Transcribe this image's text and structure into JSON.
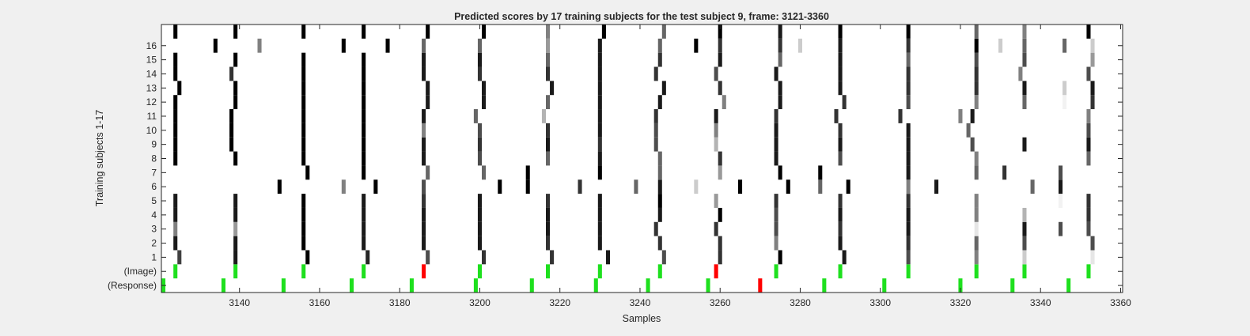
{
  "chart_data": {
    "type": "heatmap",
    "title": "Predicted scores by 17 training subjects for the test subject 9, frame: 3121-3360",
    "xlabel": "Samples",
    "ylabel": "Training subjects 1-17",
    "xlim": [
      3121,
      3360
    ],
    "xticks": [
      3140,
      3160,
      3180,
      3200,
      3220,
      3240,
      3260,
      3280,
      3300,
      3320,
      3340,
      3360
    ],
    "yticks": [
      {
        "row": 1,
        "label": "(Response)"
      },
      {
        "row": 2,
        "label": "(Image)"
      },
      {
        "row": 3,
        "label": "1"
      },
      {
        "row": 4,
        "label": "2"
      },
      {
        "row": 5,
        "label": "3"
      },
      {
        "row": 6,
        "label": "4"
      },
      {
        "row": 7,
        "label": "5"
      },
      {
        "row": 8,
        "label": "6"
      },
      {
        "row": 9,
        "label": "7"
      },
      {
        "row": 10,
        "label": "8"
      },
      {
        "row": 11,
        "label": "9"
      },
      {
        "row": 12,
        "label": "10"
      },
      {
        "row": 13,
        "label": "11"
      },
      {
        "row": 14,
        "label": "12"
      },
      {
        "row": 15,
        "label": "13"
      },
      {
        "row": 16,
        "label": "14"
      },
      {
        "row": 17,
        "label": "15"
      },
      {
        "row": 18,
        "label": "16"
      }
    ],
    "grid": false,
    "colors": {
      "marker_ok": "#1ee01e",
      "marker_error": "#ff0000",
      "background": "#ffffff"
    },
    "response_events": [
      {
        "x": 3121,
        "color": "green"
      },
      {
        "x": 3136,
        "color": "green"
      },
      {
        "x": 3151,
        "color": "green"
      },
      {
        "x": 3168,
        "color": "green"
      },
      {
        "x": 3183,
        "color": "green"
      },
      {
        "x": 3199,
        "color": "green"
      },
      {
        "x": 3213,
        "color": "green"
      },
      {
        "x": 3229,
        "color": "green"
      },
      {
        "x": 3242,
        "color": "green"
      },
      {
        "x": 3257,
        "color": "green"
      },
      {
        "x": 3270,
        "color": "red"
      },
      {
        "x": 3286,
        "color": "green"
      },
      {
        "x": 3301,
        "color": "green"
      },
      {
        "x": 3320,
        "color": "green"
      },
      {
        "x": 3333,
        "color": "green"
      },
      {
        "x": 3347,
        "color": "green"
      }
    ],
    "image_events": [
      {
        "x": 3124,
        "color": "green"
      },
      {
        "x": 3139,
        "color": "green"
      },
      {
        "x": 3156,
        "color": "green"
      },
      {
        "x": 3171,
        "color": "green"
      },
      {
        "x": 3186,
        "color": "red"
      },
      {
        "x": 3200,
        "color": "green"
      },
      {
        "x": 3217,
        "color": "green"
      },
      {
        "x": 3230,
        "color": "green"
      },
      {
        "x": 3245,
        "color": "green"
      },
      {
        "x": 3259,
        "color": "red"
      },
      {
        "x": 3274,
        "color": "green"
      },
      {
        "x": 3290,
        "color": "green"
      },
      {
        "x": 3307,
        "color": "green"
      },
      {
        "x": 3324,
        "color": "green"
      },
      {
        "x": 3336,
        "color": "green"
      },
      {
        "x": 3352,
        "color": "green"
      }
    ],
    "subjects_top_row_value": 17,
    "subjects": {
      "1": [
        [
          3125,
          0.25
        ],
        [
          3139,
          0.1
        ],
        [
          3157,
          0
        ],
        [
          3172,
          0.15
        ],
        [
          3187,
          0.3
        ],
        [
          3201,
          0.2
        ],
        [
          3218,
          0.2
        ],
        [
          3232,
          0.1
        ],
        [
          3246,
          0.3
        ],
        [
          3260,
          0.2
        ],
        [
          3275,
          0
        ],
        [
          3291,
          0.1
        ],
        [
          3307,
          0.3
        ],
        [
          3324,
          0.5
        ],
        [
          3336,
          0.8
        ],
        [
          3353,
          0.9
        ]
      ],
      "2": [
        [
          3124,
          0.1
        ],
        [
          3139,
          0.1
        ],
        [
          3156,
          0
        ],
        [
          3171,
          0.1
        ],
        [
          3186,
          0.1
        ],
        [
          3200,
          0.1
        ],
        [
          3217,
          0.2
        ],
        [
          3230,
          0.1
        ],
        [
          3245,
          0.2
        ],
        [
          3260,
          0.2
        ],
        [
          3274,
          0.5
        ],
        [
          3290,
          0.1
        ],
        [
          3307,
          0.2
        ],
        [
          3324,
          0.4
        ],
        [
          3336,
          0.3
        ],
        [
          3353,
          0.3
        ]
      ],
      "3": [
        [
          3124,
          0.5
        ],
        [
          3139,
          0.6
        ],
        [
          3156,
          0
        ],
        [
          3171,
          0.1
        ],
        [
          3186,
          0.1
        ],
        [
          3200,
          0.1
        ],
        [
          3217,
          0.1
        ],
        [
          3230,
          0.1
        ],
        [
          3244,
          0.2
        ],
        [
          3259,
          0.2
        ],
        [
          3274,
          0.3
        ],
        [
          3290,
          0.2
        ],
        [
          3307,
          0.1
        ],
        [
          3324,
          0.9
        ],
        [
          3336,
          0.1
        ],
        [
          3345,
          0.3
        ],
        [
          3352,
          0.3
        ]
      ],
      "4": [
        [
          3124,
          0.1
        ],
        [
          3139,
          0.1
        ],
        [
          3156,
          0
        ],
        [
          3171,
          0.1
        ],
        [
          3186,
          0.1
        ],
        [
          3200,
          0.1
        ],
        [
          3217,
          0.1
        ],
        [
          3230,
          0.1
        ],
        [
          3245,
          0.1
        ],
        [
          3260,
          0
        ],
        [
          3274,
          0.3
        ],
        [
          3290,
          0.1
        ],
        [
          3307,
          0.1
        ],
        [
          3324,
          0.5
        ],
        [
          3336,
          0.7
        ],
        [
          3352,
          0.2
        ]
      ],
      "5": [
        [
          3124,
          0.1
        ],
        [
          3139,
          0.1
        ],
        [
          3156,
          0
        ],
        [
          3171,
          0.1
        ],
        [
          3186,
          0.2
        ],
        [
          3200,
          0.1
        ],
        [
          3217,
          0.2
        ],
        [
          3230,
          0.1
        ],
        [
          3245,
          0
        ],
        [
          3259,
          0.6
        ],
        [
          3274,
          0.2
        ],
        [
          3290,
          0.2
        ],
        [
          3307,
          0.2
        ],
        [
          3324,
          0.5
        ],
        [
          3345,
          0.95
        ],
        [
          3352,
          0.2
        ]
      ],
      "6": [
        [
          3150,
          0
        ],
        [
          3166,
          0.5
        ],
        [
          3174,
          0
        ],
        [
          3186,
          0.3
        ],
        [
          3205,
          0
        ],
        [
          3212,
          0
        ],
        [
          3225,
          0.2
        ],
        [
          3239,
          0.4
        ],
        [
          3245,
          0.1
        ],
        [
          3254,
          0.8
        ],
        [
          3265,
          0
        ],
        [
          3277,
          0
        ],
        [
          3285,
          0.4
        ],
        [
          3292,
          0
        ],
        [
          3307,
          0.5
        ],
        [
          3314,
          0.1
        ],
        [
          3338,
          0.4
        ],
        [
          3345,
          0.1
        ]
      ],
      "7": [
        [
          3157,
          0
        ],
        [
          3171,
          0
        ],
        [
          3187,
          0.4
        ],
        [
          3201,
          0.4
        ],
        [
          3212,
          0
        ],
        [
          3230,
          0
        ],
        [
          3245,
          0.4
        ],
        [
          3260,
          0.6
        ],
        [
          3275,
          0
        ],
        [
          3285,
          0
        ],
        [
          3307,
          0.1
        ],
        [
          3324,
          0.4
        ],
        [
          3331,
          0.2
        ],
        [
          3345,
          0.3
        ]
      ],
      "8": [
        [
          3124,
          0
        ],
        [
          3139,
          0
        ],
        [
          3156,
          0
        ],
        [
          3171,
          0
        ],
        [
          3186,
          0.1
        ],
        [
          3200,
          0.3
        ],
        [
          3217,
          0.4
        ],
        [
          3230,
          0.1
        ],
        [
          3245,
          0.4
        ],
        [
          3260,
          0.2
        ],
        [
          3274,
          0.1
        ],
        [
          3290,
          0.3
        ],
        [
          3307,
          0.1
        ],
        [
          3324,
          0.5
        ],
        [
          3352,
          0.4
        ]
      ],
      "9": [
        [
          3124,
          0
        ],
        [
          3138,
          0
        ],
        [
          3156,
          0
        ],
        [
          3171,
          0
        ],
        [
          3186,
          0.1
        ],
        [
          3200,
          0.2
        ],
        [
          3217,
          0.1
        ],
        [
          3230,
          0.2
        ],
        [
          3244,
          0.3
        ],
        [
          3259,
          0.7
        ],
        [
          3274,
          0.1
        ],
        [
          3290,
          0.1
        ],
        [
          3307,
          0.1
        ],
        [
          3323,
          0.3
        ],
        [
          3336,
          0.1
        ],
        [
          3352,
          0.1
        ]
      ],
      "10": [
        [
          3124,
          0
        ],
        [
          3138,
          0
        ],
        [
          3156,
          0
        ],
        [
          3171,
          0
        ],
        [
          3186,
          0.5
        ],
        [
          3200,
          0.3
        ],
        [
          3217,
          0.2
        ],
        [
          3230,
          0.1
        ],
        [
          3244,
          0.3
        ],
        [
          3259,
          0.5
        ],
        [
          3274,
          0.1
        ],
        [
          3290,
          0.2
        ],
        [
          3307,
          0.1
        ],
        [
          3322,
          0.4
        ],
        [
          3352,
          0.3
        ]
      ],
      "11": [
        [
          3124,
          0
        ],
        [
          3138,
          0
        ],
        [
          3156,
          0
        ],
        [
          3171,
          0
        ],
        [
          3186,
          0.1
        ],
        [
          3199,
          0.4
        ],
        [
          3216,
          0.7
        ],
        [
          3230,
          0.1
        ],
        [
          3244,
          0.2
        ],
        [
          3259,
          0.1
        ],
        [
          3274,
          0.2
        ],
        [
          3289,
          0.2
        ],
        [
          3305,
          0.2
        ],
        [
          3320,
          0.5
        ],
        [
          3323,
          0.1
        ],
        [
          3352,
          0.5
        ]
      ],
      "12": [
        [
          3124,
          0
        ],
        [
          3139,
          0
        ],
        [
          3156,
          0
        ],
        [
          3171,
          0
        ],
        [
          3187,
          0.1
        ],
        [
          3201,
          0.1
        ],
        [
          3217,
          0.4
        ],
        [
          3230,
          0.1
        ],
        [
          3245,
          0.1
        ],
        [
          3261,
          0.5
        ],
        [
          3275,
          0.1
        ],
        [
          3291,
          0.2
        ],
        [
          3307,
          0.3
        ],
        [
          3324,
          0.5
        ],
        [
          3336,
          0.4
        ],
        [
          3346,
          0.95
        ],
        [
          3353,
          0.2
        ]
      ],
      "13": [
        [
          3125,
          0
        ],
        [
          3139,
          0
        ],
        [
          3156,
          0
        ],
        [
          3171,
          0
        ],
        [
          3187,
          0.1
        ],
        [
          3201,
          0.1
        ],
        [
          3218,
          0.1
        ],
        [
          3230,
          0.1
        ],
        [
          3246,
          0.1
        ],
        [
          3260,
          0.2
        ],
        [
          3275,
          0.1
        ],
        [
          3290,
          0.1
        ],
        [
          3307,
          0.2
        ],
        [
          3324,
          0.2
        ],
        [
          3336,
          0.1
        ],
        [
          3346,
          0.8
        ],
        [
          3353,
          0.1
        ]
      ],
      "14": [
        [
          3124,
          0
        ],
        [
          3138,
          0.2
        ],
        [
          3156,
          0
        ],
        [
          3171,
          0
        ],
        [
          3186,
          0.1
        ],
        [
          3200,
          0.2
        ],
        [
          3217,
          0.2
        ],
        [
          3230,
          0.1
        ],
        [
          3244,
          0.2
        ],
        [
          3259,
          0.3
        ],
        [
          3274,
          0.1
        ],
        [
          3290,
          0.1
        ],
        [
          3307,
          0.2
        ],
        [
          3324,
          0.2
        ],
        [
          3335,
          0.5
        ],
        [
          3352,
          0.3
        ]
      ],
      "15": [
        [
          3124,
          0
        ],
        [
          3139,
          0
        ],
        [
          3156,
          0
        ],
        [
          3171,
          0
        ],
        [
          3186,
          0.1
        ],
        [
          3200,
          0.1
        ],
        [
          3217,
          0.4
        ],
        [
          3230,
          0.1
        ],
        [
          3245,
          0.2
        ],
        [
          3260,
          0.1
        ],
        [
          3275,
          0.4
        ],
        [
          3290,
          0.1
        ],
        [
          3307,
          0.4
        ],
        [
          3324,
          0.3
        ],
        [
          3336,
          0.3
        ],
        [
          3353,
          0.6
        ]
      ],
      "16": [
        [
          3134,
          0
        ],
        [
          3145,
          0.5
        ],
        [
          3166,
          0
        ],
        [
          3177,
          0
        ],
        [
          3186,
          0.4
        ],
        [
          3200,
          0.4
        ],
        [
          3217,
          0.6
        ],
        [
          3230,
          0.1
        ],
        [
          3245,
          0.4
        ],
        [
          3254,
          0
        ],
        [
          3260,
          0.2
        ],
        [
          3275,
          0.2
        ],
        [
          3280,
          0.8
        ],
        [
          3290,
          0.1
        ],
        [
          3307,
          0.2
        ],
        [
          3324,
          0
        ],
        [
          3330,
          0.8
        ],
        [
          3336,
          0.4
        ],
        [
          3346,
          0.4
        ],
        [
          3353,
          0.8
        ]
      ],
      "17": [
        [
          3124,
          0
        ],
        [
          3139,
          0
        ],
        [
          3156,
          0
        ],
        [
          3171,
          0
        ],
        [
          3187,
          0
        ],
        [
          3201,
          0
        ],
        [
          3217,
          0.5
        ],
        [
          3231,
          0
        ],
        [
          3246,
          0.4
        ],
        [
          3260,
          0
        ],
        [
          3275,
          0.1
        ],
        [
          3290,
          0
        ],
        [
          3307,
          0
        ],
        [
          3324,
          0.4
        ],
        [
          3336,
          0.5
        ],
        [
          3352,
          0
        ]
      ]
    }
  }
}
